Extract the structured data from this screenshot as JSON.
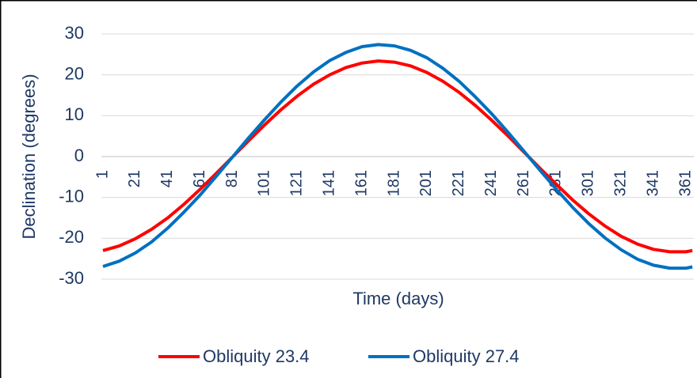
{
  "chart_data": {
    "type": "line",
    "x": [
      1,
      11,
      21,
      31,
      41,
      51,
      61,
      71,
      81,
      91,
      101,
      111,
      121,
      131,
      141,
      151,
      161,
      171,
      181,
      191,
      201,
      211,
      221,
      231,
      241,
      251,
      261,
      271,
      281,
      291,
      301,
      311,
      321,
      331,
      341,
      351,
      361,
      365
    ],
    "series": [
      {
        "name": "Obliquity 23.4",
        "color": "#ff0000",
        "values": [
          -23.0,
          -21.9,
          -20.1,
          -17.8,
          -15.0,
          -11.7,
          -8.0,
          -4.1,
          -0.1,
          3.9,
          7.8,
          11.5,
          14.8,
          17.7,
          20.0,
          21.8,
          22.9,
          23.4,
          23.1,
          22.2,
          20.6,
          18.4,
          15.7,
          12.5,
          8.9,
          5.1,
          1.1,
          -2.9,
          -6.8,
          -10.6,
          -14.0,
          -17.0,
          -19.5,
          -21.4,
          -22.7,
          -23.3,
          -23.3,
          -23.0
        ]
      },
      {
        "name": "Obliquity 27.4",
        "color": "#0070c0",
        "values": [
          -26.9,
          -25.6,
          -23.6,
          -20.9,
          -17.5,
          -13.6,
          -9.4,
          -4.8,
          -0.1,
          4.6,
          9.1,
          13.4,
          17.3,
          20.7,
          23.5,
          25.5,
          26.9,
          27.4,
          27.1,
          26.0,
          24.2,
          21.6,
          18.4,
          14.6,
          10.5,
          6.0,
          1.3,
          -3.4,
          -8.0,
          -12.4,
          -16.4,
          -19.9,
          -22.8,
          -25.1,
          -26.6,
          -27.3,
          -27.3,
          -27.0
        ]
      }
    ],
    "xlabel": "Time (days)",
    "ylabel": "Declination (degrees)",
    "xlim": [
      1,
      365
    ],
    "xticks": [
      1,
      21,
      41,
      61,
      81,
      101,
      121,
      141,
      161,
      181,
      201,
      221,
      241,
      261,
      281,
      301,
      321,
      341,
      361
    ],
    "ylim": [
      -30,
      30
    ],
    "yticks": [
      -30,
      -20,
      -10,
      0,
      10,
      20,
      30
    ],
    "grid": true,
    "legend": "bottom"
  }
}
